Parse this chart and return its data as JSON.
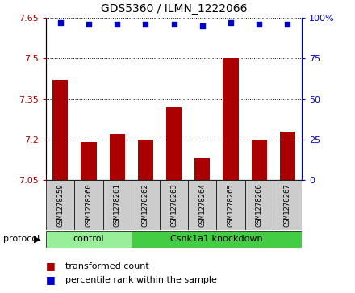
{
  "title": "GDS5360 / ILMN_1222066",
  "samples": [
    "GSM1278259",
    "GSM1278260",
    "GSM1278261",
    "GSM1278262",
    "GSM1278263",
    "GSM1278264",
    "GSM1278265",
    "GSM1278266",
    "GSM1278267"
  ],
  "bar_values": [
    7.42,
    7.19,
    7.22,
    7.2,
    7.32,
    7.13,
    7.5,
    7.2,
    7.23
  ],
  "percentile_values": [
    97,
    96,
    96,
    96,
    96,
    95,
    97,
    96,
    96
  ],
  "ylim_left": [
    7.05,
    7.65
  ],
  "ylim_right": [
    0,
    100
  ],
  "yticks_left": [
    7.05,
    7.2,
    7.35,
    7.5,
    7.65
  ],
  "ytick_labels_left": [
    "7.05",
    "7.2",
    "7.35",
    "7.5",
    "7.65"
  ],
  "yticks_right": [
    0,
    25,
    50,
    75,
    100
  ],
  "ytick_labels_right": [
    "0",
    "25",
    "50",
    "75",
    "100%"
  ],
  "bar_color": "#aa0000",
  "dot_color": "#0000cc",
  "bar_width": 0.55,
  "control_label": "control",
  "knockdown_label": "Csnk1a1 knockdown",
  "protocol_label": "protocol",
  "legend_bar_label": "transformed count",
  "legend_dot_label": "percentile rank within the sample",
  "control_color": "#99ee99",
  "knockdown_color": "#44cc44",
  "ctrl_count": 3,
  "bg_color": "#cccccc",
  "title_fontsize": 10
}
